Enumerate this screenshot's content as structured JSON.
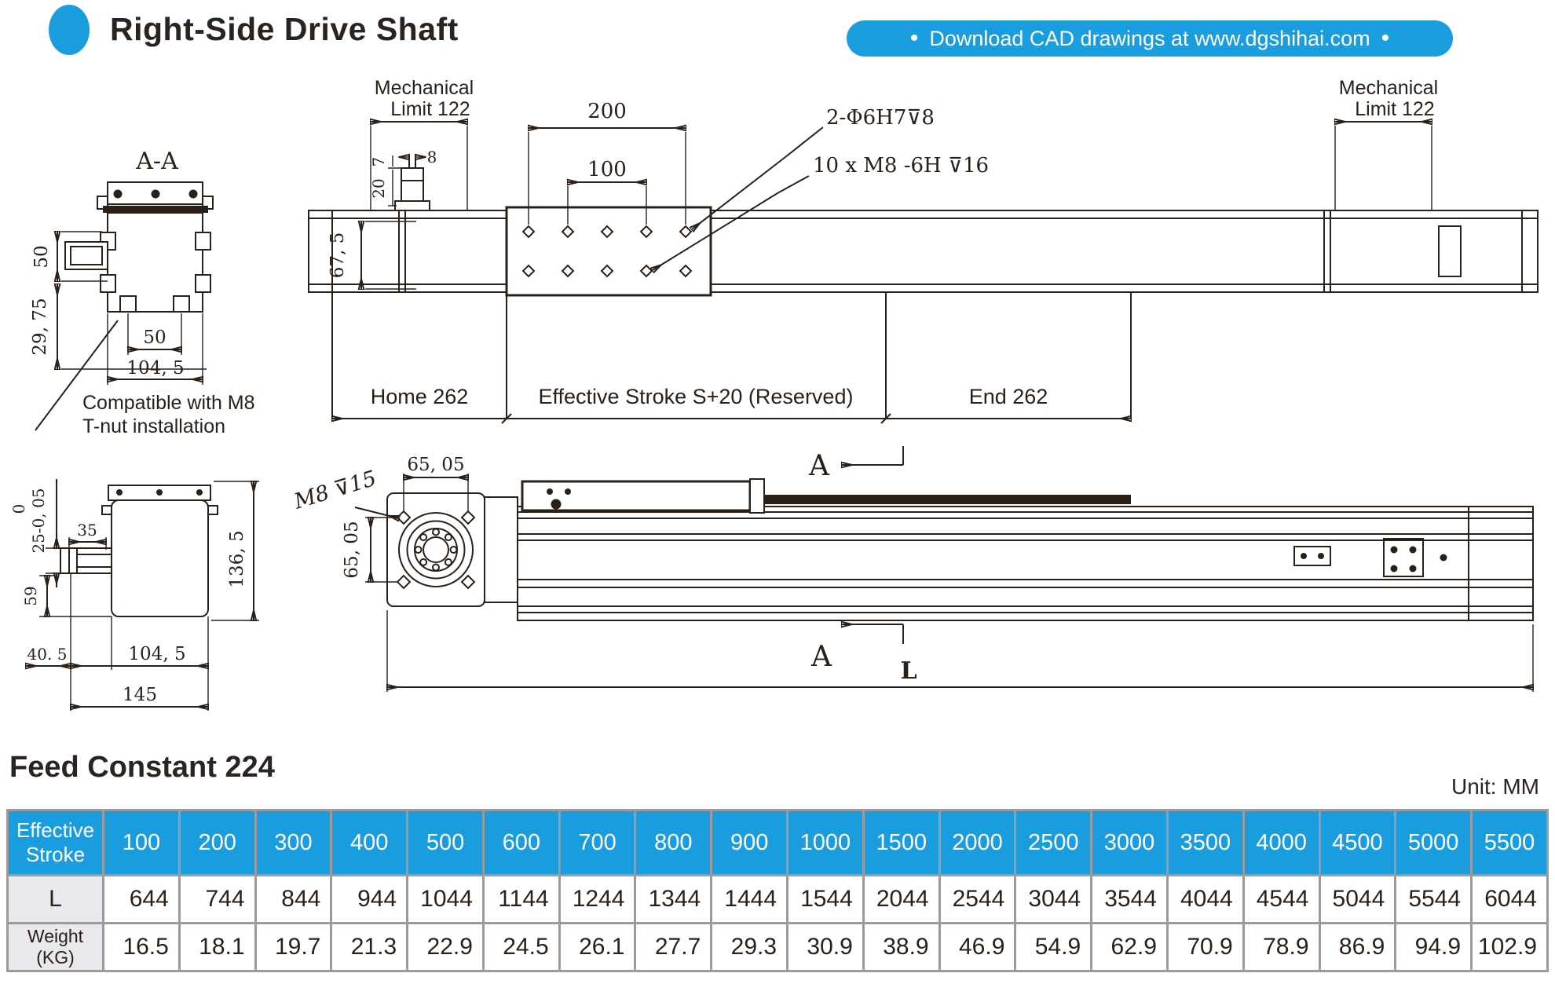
{
  "header": {
    "title": "Right-Side Drive Shaft",
    "banner": "Download CAD drawings at www.dgshihai.com",
    "bullet": "•"
  },
  "drawing": {
    "section_label": "A-A",
    "aa": {
      "dim_height_50": "50",
      "dim_29_75": "29, 75",
      "dim_slot_50": "50",
      "dim_104_5": "104, 5",
      "note_line1": "Compatible with M8",
      "note_line2": "T-nut installation"
    },
    "top_view": {
      "mech_limit_left_line1": "Mechanical",
      "mech_limit_left_line2": "Limit 122",
      "mech_limit_right_line1": "Mechanical",
      "mech_limit_right_line2": "Limit 122",
      "dim_200": "200",
      "dim_100": "100",
      "dim_8": "8",
      "dim_7": "7",
      "dim_20": "20",
      "callout_dowel": "2-Φ6H7⊽8",
      "callout_thread": "10 x M8 -6H ⊽16",
      "dim_67_5": "67, 5",
      "zone_home": "Home 262",
      "zone_stroke": "Effective Stroke S+20 (Reserved)",
      "zone_end": "End 262"
    },
    "side_view": {
      "dim_65_05_top": "65, 05",
      "dim_65_05_left": "65, 05",
      "callout_m8": "M8 ⊽15",
      "section_arrow_top": "A",
      "section_arrow_bottom": "A",
      "dim_length": "L"
    },
    "end_view": {
      "dim_0": "0",
      "dim_25_005": "25-0, 05",
      "dim_35": "35",
      "dim_59": "59",
      "dim_136_5": "136, 5",
      "dim_40_5": "40. 5",
      "dim_104_5": "104, 5",
      "dim_145": "145"
    }
  },
  "table": {
    "title": "Feed Constant 224",
    "unit": "Unit: MM",
    "header_label_line1": "Effective",
    "header_label_line2": "Stroke",
    "l_label": "L",
    "weight_label": "Weight (KG)",
    "strokes": [
      "100",
      "200",
      "300",
      "400",
      "500",
      "600",
      "700",
      "800",
      "900",
      "1000",
      "1500",
      "2000",
      "2500",
      "3000",
      "3500",
      "4000",
      "4500",
      "5000",
      "5500"
    ],
    "l_values": [
      "644",
      "744",
      "844",
      "944",
      "1044",
      "1144",
      "1244",
      "1344",
      "1444",
      "1544",
      "2044",
      "2544",
      "3044",
      "3544",
      "4044",
      "4544",
      "5044",
      "5544",
      "6044"
    ],
    "weights": [
      "16.5",
      "18.1",
      "19.7",
      "21.3",
      "22.9",
      "24.5",
      "26.1",
      "27.7",
      "29.3",
      "30.9",
      "38.9",
      "46.9",
      "54.9",
      "62.9",
      "70.9",
      "78.9",
      "86.9",
      "94.9",
      "102.9"
    ]
  }
}
